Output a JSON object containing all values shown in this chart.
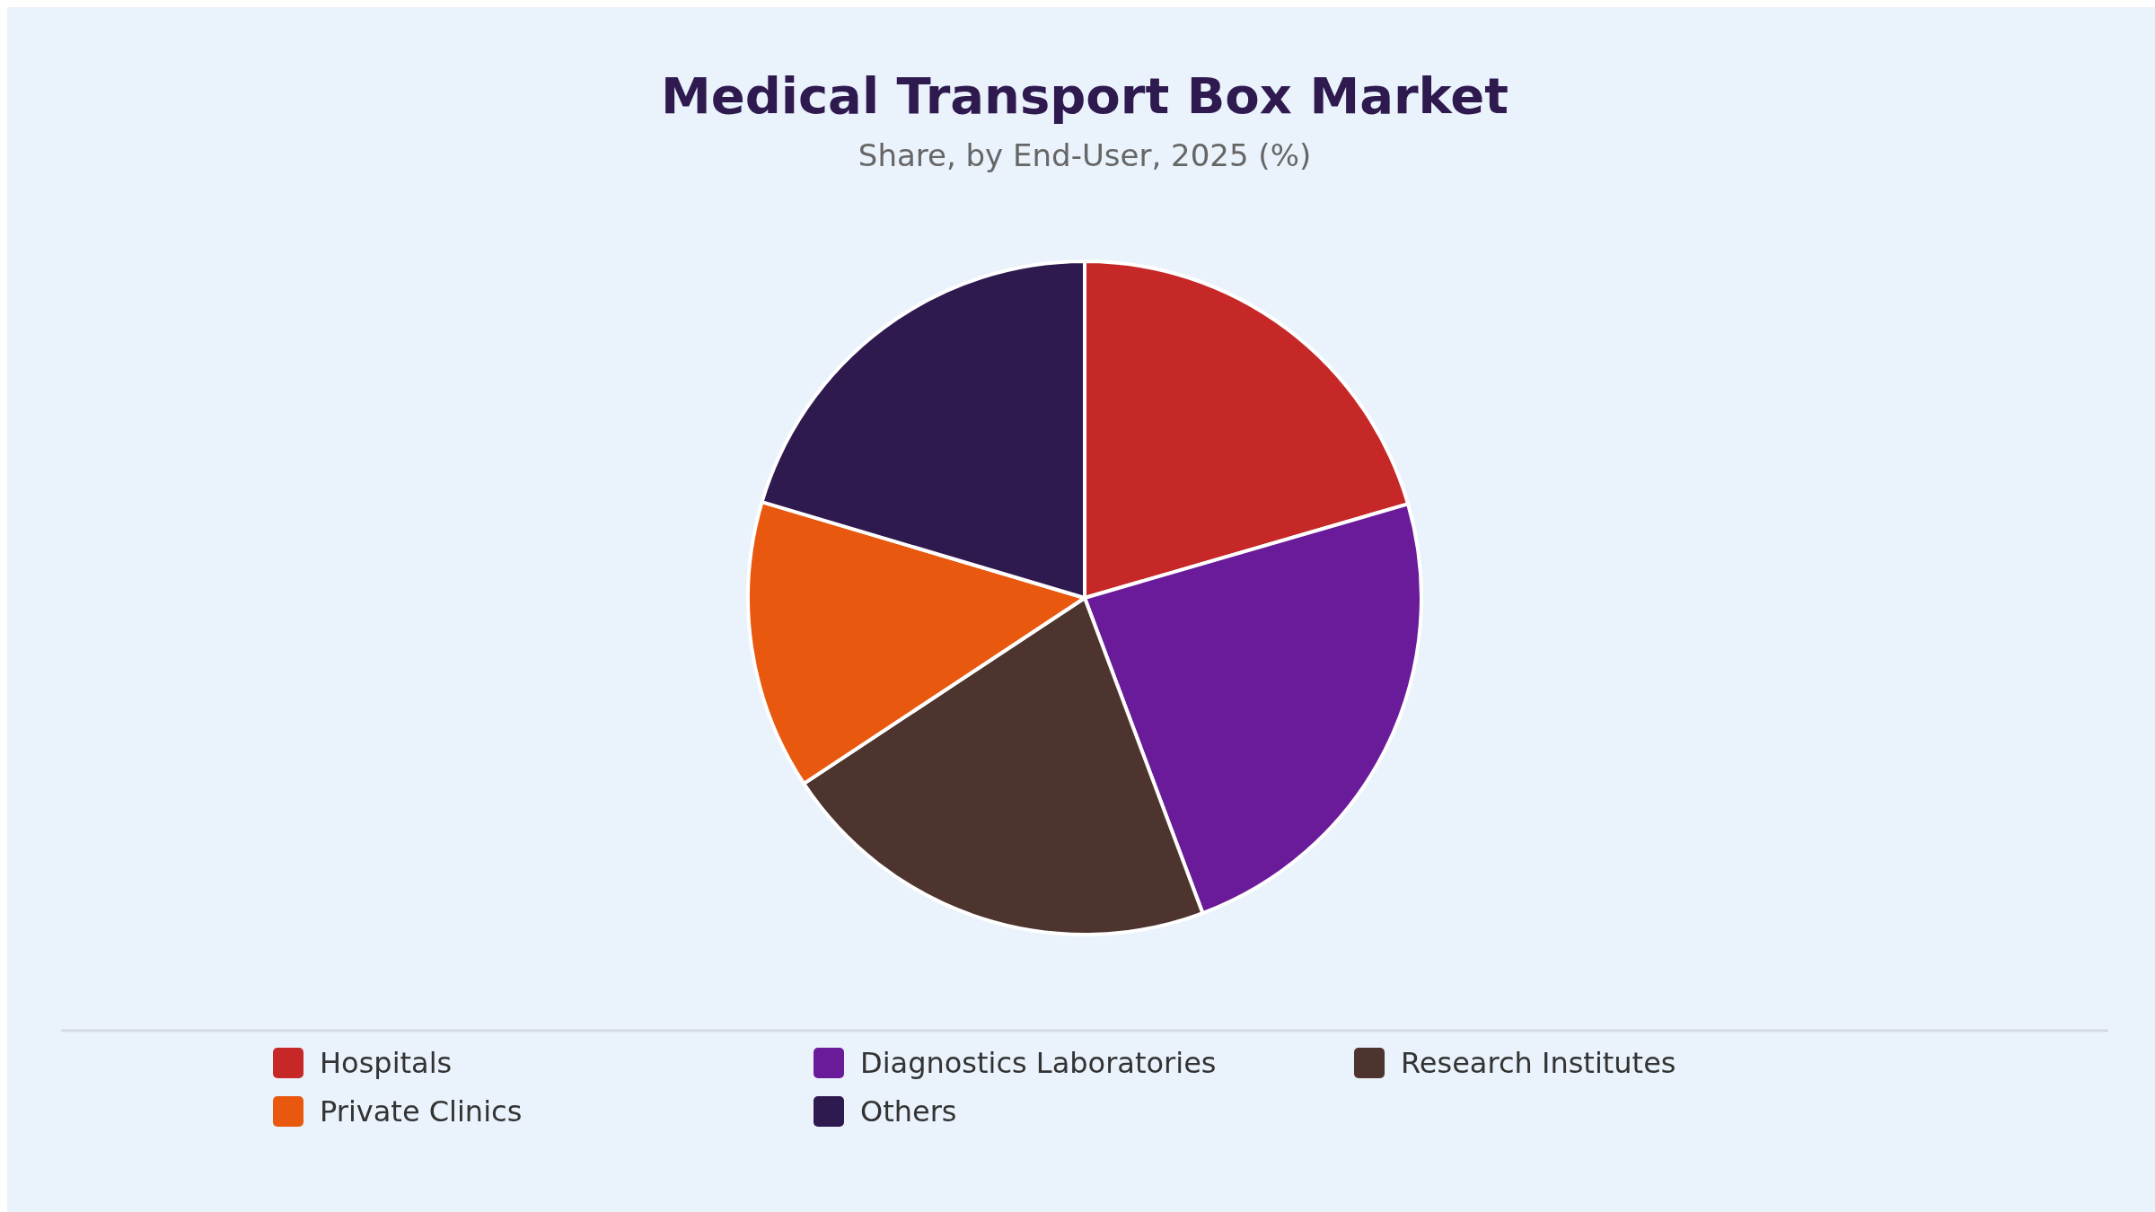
{
  "chart_data": {
    "type": "pie",
    "title": "Medical Transport Box Market",
    "subtitle": "Share, by End-User, 2025 (%)",
    "categories": [
      "Hospitals",
      "Diagnostics Laboratories",
      "Research Institutes",
      "Private Clinics",
      "Others"
    ],
    "values": [
      20.5,
      23.8,
      21.4,
      13.9,
      20.4
    ],
    "colors": [
      "#c62828",
      "#6a1b9a",
      "#4e342e",
      "#e8590f",
      "#2e1a4f"
    ],
    "legend": "bottom"
  }
}
